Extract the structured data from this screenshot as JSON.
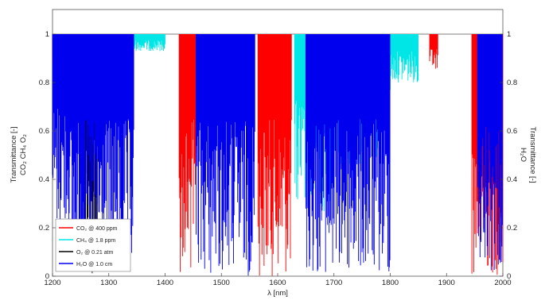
{
  "chart_data": {
    "type": "line",
    "xlabel": "λ [nm]",
    "ylabel_left_1": "Transmittance [-]",
    "ylabel_left_2": "CO₂ CH₄ O₂",
    "ylabel_right_1": "Transmittance [-]",
    "ylabel_right_2": "H₂O",
    "xlim": [
      1200,
      2000
    ],
    "ylim": [
      0,
      1
    ],
    "x_ticks": [
      1200,
      1300,
      1400,
      1500,
      1600,
      1700,
      1800,
      1900,
      2000
    ],
    "y_ticks": [
      0,
      0.2,
      0.4,
      0.6,
      0.8,
      1
    ],
    "grid": false,
    "legend_position": "bottom-left",
    "series": [
      {
        "name": "CO₂ @ 400 ppm",
        "color": "#ff0000",
        "bands": [
          {
            "from": 1200,
            "to": 1215,
            "min": 0.85
          },
          {
            "from": 1315,
            "to": 1330,
            "min": 0.95
          },
          {
            "from": 1425,
            "to": 1455,
            "min": 0.0
          },
          {
            "from": 1530,
            "to": 1550,
            "min": 0.8
          },
          {
            "from": 1565,
            "to": 1625,
            "min": 0.0
          },
          {
            "from": 1870,
            "to": 1885,
            "min": 0.85
          },
          {
            "from": 1945,
            "to": 2000,
            "min": 0.0
          }
        ]
      },
      {
        "name": "CH₄ @ 1.8 ppm",
        "color": "#00e5e5",
        "bands": [
          {
            "from": 1300,
            "to": 1400,
            "min": 0.93
          },
          {
            "from": 1630,
            "to": 1700,
            "min": 0.25
          },
          {
            "from": 1700,
            "to": 1800,
            "min": 0.45
          },
          {
            "from": 1800,
            "to": 1850,
            "min": 0.8
          }
        ]
      },
      {
        "name": "O₂ @ 0.21 atm",
        "color": "#000000",
        "bands": [
          {
            "from": 1248,
            "to": 1282,
            "min": 0.0
          }
        ]
      },
      {
        "name": "H₂O @ 1.0 cm",
        "color": "#0000ee",
        "bands": [
          {
            "from": 1200,
            "to": 1230,
            "min": 0.2
          },
          {
            "from": 1230,
            "to": 1345,
            "min": 0.0
          },
          {
            "from": 1455,
            "to": 1560,
            "min": 0.0
          },
          {
            "from": 1650,
            "to": 1800,
            "min": 0.0
          },
          {
            "from": 1955,
            "to": 2000,
            "min": 0.0
          }
        ]
      }
    ],
    "legend": [
      {
        "label": "CO₂ @ 400 ppm",
        "color": "#ff0000"
      },
      {
        "label": "CH₄ @ 1.8 ppm",
        "color": "#00e5e5"
      },
      {
        "label": "O₂ @ 0.21 atm",
        "color": "#000000"
      },
      {
        "label": "H₂O @ 1.0 cm",
        "color": "#0000ee"
      }
    ]
  }
}
